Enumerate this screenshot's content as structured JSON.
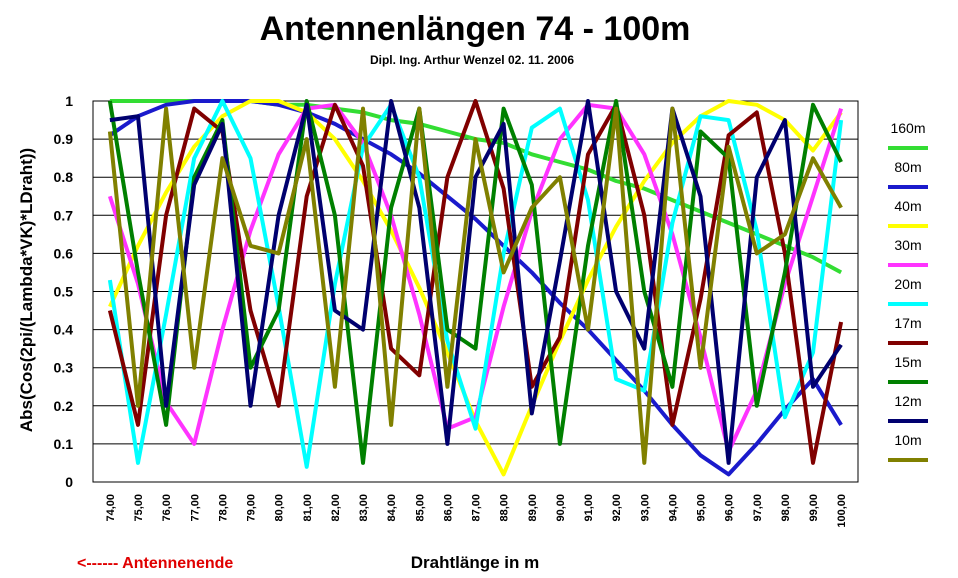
{
  "chart_data": {
    "type": "line",
    "title": "Antennenlängen 74 - 100m",
    "subtitle": "Dipl. Ing. Arthur Wenzel  02. 11. 2006",
    "xlabel": "Drahtlänge in m",
    "ylabel": "Abs(Cos(2pi/(Lambda*VK)*LDraht))",
    "footnote": "<------  Antennenende",
    "xlim": [
      73.4,
      100.6
    ],
    "ylim": [
      0,
      1
    ],
    "x_ticks": [
      "74,00",
      "75,00",
      "76,00",
      "77,00",
      "78,00",
      "79,00",
      "80,00",
      "81,00",
      "82,00",
      "83,00",
      "84,00",
      "85,00",
      "86,00",
      "87,00",
      "88,00",
      "89,00",
      "90,00",
      "91,00",
      "92,00",
      "93,00",
      "94,00",
      "95,00",
      "96,00",
      "97,00",
      "98,00",
      "99,00",
      "100,00"
    ],
    "y_ticks": [
      "0",
      "0.1",
      "0.2",
      "0.3",
      "0.4",
      "0.5",
      "0.6",
      "0.7",
      "0.8",
      "0.9",
      "1"
    ],
    "grid": true,
    "legend_position": "right",
    "x_start": 74,
    "x_step": 1,
    "series": [
      {
        "name": "160m",
        "color": "#33dd33",
        "values": [
          1.0,
          1.0,
          1.0,
          1.0,
          1.0,
          1.0,
          0.99,
          0.99,
          0.98,
          0.97,
          0.95,
          0.94,
          0.92,
          0.9,
          0.89,
          0.86,
          0.84,
          0.82,
          0.79,
          0.77,
          0.74,
          0.71,
          0.68,
          0.65,
          0.62,
          0.59,
          0.55
        ]
      },
      {
        "name": "80m",
        "color": "#1a1acc",
        "values": [
          0.91,
          0.96,
          0.99,
          1.0,
          1.0,
          1.0,
          0.99,
          0.97,
          0.94,
          0.9,
          0.86,
          0.81,
          0.75,
          0.69,
          0.62,
          0.55,
          0.47,
          0.4,
          0.32,
          0.24,
          0.15,
          0.07,
          0.02,
          0.1,
          0.19,
          0.27,
          0.15
        ]
      },
      {
        "name": "40m",
        "color": "#ffff00",
        "values": [
          0.46,
          0.62,
          0.76,
          0.88,
          0.96,
          1.0,
          1.0,
          0.97,
          0.9,
          0.79,
          0.66,
          0.51,
          0.34,
          0.16,
          0.02,
          0.2,
          0.37,
          0.53,
          0.67,
          0.79,
          0.89,
          0.96,
          1.0,
          0.99,
          0.95,
          0.87,
          0.97
        ]
      },
      {
        "name": "30m",
        "color": "#ff33ff",
        "values": [
          0.75,
          0.52,
          0.21,
          0.1,
          0.4,
          0.66,
          0.86,
          0.98,
          0.99,
          0.89,
          0.7,
          0.44,
          0.14,
          0.17,
          0.46,
          0.71,
          0.9,
          0.99,
          0.98,
          0.86,
          0.65,
          0.38,
          0.08,
          0.24,
          0.52,
          0.75,
          0.98
        ]
      },
      {
        "name": "20m",
        "color": "#00ffff",
        "values": [
          0.53,
          0.05,
          0.44,
          0.85,
          1.0,
          0.85,
          0.46,
          0.04,
          0.52,
          0.88,
          0.99,
          0.8,
          0.37,
          0.14,
          0.6,
          0.93,
          0.98,
          0.74,
          0.27,
          0.24,
          0.68,
          0.96,
          0.95,
          0.66,
          0.17,
          0.34,
          0.95
        ]
      },
      {
        "name": "17m",
        "color": "#800000",
        "values": [
          0.45,
          0.15,
          0.7,
          0.98,
          0.92,
          0.45,
          0.2,
          0.75,
          0.99,
          0.83,
          0.35,
          0.28,
          0.8,
          1.0,
          0.77,
          0.25,
          0.38,
          0.86,
          0.99,
          0.7,
          0.15,
          0.48,
          0.91,
          0.97,
          0.6,
          0.05,
          0.42
        ]
      },
      {
        "name": "15m",
        "color": "#008000",
        "values": [
          1.0,
          0.55,
          0.15,
          0.8,
          0.95,
          0.3,
          0.45,
          1.0,
          0.7,
          0.05,
          0.72,
          0.98,
          0.4,
          0.35,
          0.98,
          0.78,
          0.1,
          0.62,
          1.0,
          0.5,
          0.25,
          0.92,
          0.85,
          0.2,
          0.55,
          0.99,
          0.84
        ]
      },
      {
        "name": "12m",
        "color": "#00006f",
        "values": [
          0.95,
          0.96,
          0.2,
          0.78,
          0.94,
          0.2,
          0.7,
          0.99,
          0.45,
          0.4,
          1.0,
          0.72,
          0.1,
          0.8,
          0.94,
          0.18,
          0.58,
          1.0,
          0.5,
          0.35,
          0.98,
          0.75,
          0.05,
          0.8,
          0.95,
          0.25,
          0.36
        ]
      },
      {
        "name": "10m",
        "color": "#808000",
        "values": [
          0.92,
          0.2,
          0.98,
          0.3,
          0.85,
          0.62,
          0.6,
          0.9,
          0.25,
          0.98,
          0.15,
          0.98,
          0.25,
          0.9,
          0.55,
          0.72,
          0.8,
          0.4,
          0.98,
          0.05,
          0.98,
          0.3,
          0.88,
          0.6,
          0.65,
          0.85,
          0.72
        ]
      }
    ]
  }
}
